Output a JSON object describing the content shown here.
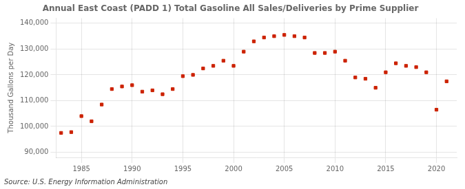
{
  "chart_data": {
    "type": "scatter",
    "title": "Annual East Coast (PADD 1) Total Gasoline All Sales/Deliveries by Prime Supplier",
    "ylabel": "Thousand Gallons per Day",
    "annotations": [
      "Source: U.S. Energy Information Administration"
    ],
    "color": "#cc2200",
    "marker": "square",
    "grid": true,
    "xlim": [
      1982.5,
      2022
    ],
    "ylim": [
      88000,
      142000
    ],
    "xticks": [
      1985,
      1990,
      1995,
      2000,
      2005,
      2010,
      2015,
      2020
    ],
    "yticks": [
      {
        "value": 90000,
        "label": "90,000"
      },
      {
        "value": 100000,
        "label": "100,000"
      },
      {
        "value": 110000,
        "label": "110,000"
      },
      {
        "value": 120000,
        "label": "120,000"
      },
      {
        "value": 130000,
        "label": "130,000"
      },
      {
        "value": 140000,
        "label": "140,000"
      }
    ],
    "x": [
      1983,
      1984,
      1985,
      1986,
      1987,
      1988,
      1989,
      1990,
      1991,
      1992,
      1993,
      1994,
      1995,
      1996,
      1997,
      1998,
      1999,
      2000,
      2001,
      2002,
      2003,
      2004,
      2005,
      2006,
      2007,
      2008,
      2009,
      2010,
      2011,
      2012,
      2013,
      2014,
      2015,
      2016,
      2017,
      2018,
      2019,
      2020,
      2021
    ],
    "values": [
      97500,
      97800,
      104000,
      102000,
      108500,
      114500,
      115500,
      116000,
      113500,
      114000,
      112500,
      114500,
      119500,
      120000,
      122500,
      123500,
      125500,
      123500,
      129000,
      133000,
      134500,
      135000,
      135500,
      135000,
      134500,
      128500,
      128500,
      129000,
      125500,
      119000,
      118500,
      115000,
      121000,
      124500,
      123500,
      123000,
      121000,
      106500,
      117500
    ]
  }
}
